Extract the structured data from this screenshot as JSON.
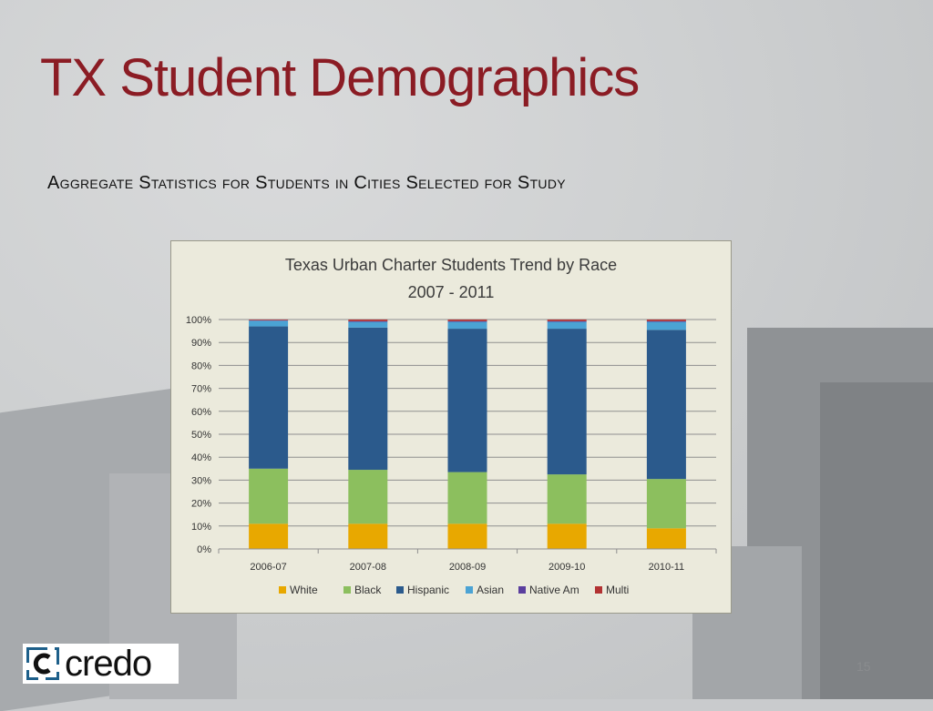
{
  "slide": {
    "title": "TX Student Demographics",
    "subtitle": "Aggregate Statistics for Students in Cities Selected for Study",
    "page_number": "15",
    "logo_text": "credo"
  },
  "colors": {
    "title": "#8b1c24",
    "White": "#e8a800",
    "Black": "#8cbf5e",
    "Hispanic": "#2b5a8c",
    "Asian": "#4ba3d4",
    "Native Am": "#5a3e9e",
    "Multi": "#b23232",
    "chart_bg": "#ebeadc"
  },
  "chart_data": {
    "type": "bar",
    "stacked": true,
    "title": "Texas Urban Charter Students Trend by Race",
    "subtitle": "2007 - 2011",
    "categories": [
      "2006-07",
      "2007-08",
      "2008-09",
      "2009-10",
      "2010-11"
    ],
    "series": [
      {
        "name": "White",
        "values": [
          11,
          11,
          11,
          11,
          9
        ]
      },
      {
        "name": "Black",
        "values": [
          24,
          23.5,
          22.5,
          21.5,
          21.5
        ]
      },
      {
        "name": "Hispanic",
        "values": [
          62,
          62,
          62.5,
          63.5,
          65
        ]
      },
      {
        "name": "Asian",
        "values": [
          2.5,
          2.5,
          3,
          3,
          3.5
        ]
      },
      {
        "name": "Native Am",
        "values": [
          0.2,
          0.3,
          0.3,
          0.3,
          0.3
        ]
      },
      {
        "name": "Multi",
        "values": [
          0.3,
          0.7,
          0.7,
          0.7,
          0.7
        ]
      }
    ],
    "y_ticks": [
      "100%",
      "90%",
      "80%",
      "70%",
      "60%",
      "50%",
      "40%",
      "30%",
      "20%",
      "10%",
      "0%"
    ],
    "ylim": [
      0,
      100
    ],
    "grid": true,
    "legend_position": "bottom"
  }
}
